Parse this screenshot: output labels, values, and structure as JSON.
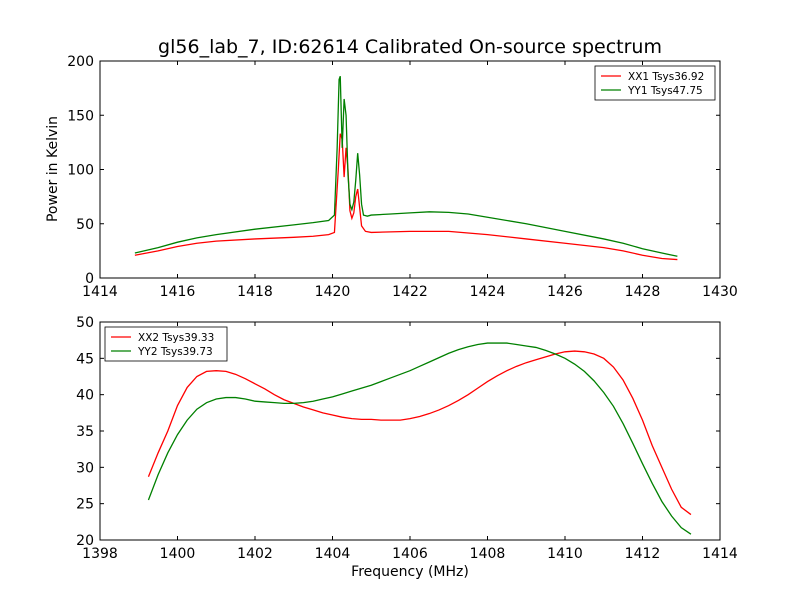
{
  "figure": {
    "title": "gl56_lab_7, ID:62614 Calibrated On-source spectrum",
    "ylabel": "Power in Kelvin",
    "xlabel": "Frequency (MHz)"
  },
  "colors": {
    "red": "#ff0000",
    "green": "#008000"
  },
  "chart_data": [
    {
      "type": "line",
      "xlim": [
        1414,
        1430
      ],
      "ylim": [
        0,
        200
      ],
      "xticks": [
        1414,
        1416,
        1418,
        1420,
        1422,
        1424,
        1426,
        1428,
        1430
      ],
      "yticks": [
        0,
        50,
        100,
        150,
        200
      ],
      "legend_position": "top-right",
      "grid": false,
      "series": [
        {
          "name": "XX1 Tsys36.92",
          "color": "#ff0000",
          "x": [
            1414.9,
            1415.5,
            1416,
            1416.5,
            1417,
            1418,
            1419,
            1419.5,
            1419.9,
            1420.05,
            1420.15,
            1420.2,
            1420.25,
            1420.3,
            1420.35,
            1420.4,
            1420.45,
            1420.5,
            1420.55,
            1420.6,
            1420.65,
            1420.7,
            1420.75,
            1420.85,
            1421,
            1421.5,
            1422,
            1423,
            1424,
            1425,
            1426,
            1427,
            1427.5,
            1428,
            1428.5,
            1428.9
          ],
          "y": [
            21,
            25,
            29,
            32,
            34,
            36,
            37.5,
            38.5,
            40,
            42,
            100,
            133,
            128,
            93,
            120,
            100,
            62,
            55,
            60,
            75,
            82,
            65,
            48,
            43,
            42,
            42.5,
            43,
            43,
            40,
            36,
            32,
            28,
            25,
            21,
            18,
            17
          ]
        },
        {
          "name": "YY1 Tsys47.75",
          "color": "#008000",
          "x": [
            1414.9,
            1415.5,
            1416,
            1416.5,
            1417,
            1418,
            1419,
            1419.5,
            1419.9,
            1420.05,
            1420.12,
            1420.17,
            1420.2,
            1420.25,
            1420.3,
            1420.35,
            1420.4,
            1420.45,
            1420.5,
            1420.55,
            1420.6,
            1420.65,
            1420.7,
            1420.75,
            1420.8,
            1420.9,
            1421,
            1421.5,
            1422,
            1422.5,
            1423,
            1423.5,
            1424,
            1425,
            1426,
            1427,
            1427.5,
            1428,
            1428.5,
            1428.9
          ],
          "y": [
            23,
            28,
            33,
            37,
            40,
            45,
            49,
            51,
            53,
            58,
            120,
            183,
            186,
            120,
            165,
            150,
            95,
            68,
            63,
            70,
            90,
            115,
            95,
            68,
            58,
            57,
            58,
            59,
            60,
            61,
            60.5,
            59,
            56,
            50,
            43,
            36,
            32,
            27,
            23,
            20
          ]
        }
      ]
    },
    {
      "type": "line",
      "xlim": [
        1398,
        1414
      ],
      "ylim": [
        20,
        50
      ],
      "xticks": [
        1398,
        1400,
        1402,
        1404,
        1406,
        1408,
        1410,
        1412,
        1414
      ],
      "yticks": [
        20,
        25,
        30,
        35,
        40,
        45,
        50
      ],
      "legend_position": "top-left",
      "grid": false,
      "series": [
        {
          "name": "XX2 Tsys39.33",
          "color": "#ff0000",
          "x": [
            1399.25,
            1399.5,
            1399.75,
            1400,
            1400.25,
            1400.5,
            1400.75,
            1401,
            1401.25,
            1401.5,
            1401.75,
            1402,
            1402.25,
            1402.5,
            1402.75,
            1403,
            1403.25,
            1403.5,
            1403.75,
            1404,
            1404.25,
            1404.5,
            1404.75,
            1405,
            1405.25,
            1405.5,
            1405.75,
            1406,
            1406.25,
            1406.5,
            1406.75,
            1407,
            1407.25,
            1407.5,
            1407.75,
            1408,
            1408.25,
            1408.5,
            1408.75,
            1409,
            1409.25,
            1409.5,
            1409.75,
            1410,
            1410.25,
            1410.5,
            1410.75,
            1411,
            1411.25,
            1411.5,
            1411.75,
            1412,
            1412.25,
            1412.5,
            1412.75,
            1413,
            1413.25
          ],
          "y": [
            28.7,
            32,
            35,
            38.5,
            41,
            42.5,
            43.2,
            43.3,
            43.2,
            42.8,
            42.2,
            41.5,
            40.8,
            40.0,
            39.3,
            38.8,
            38.3,
            37.9,
            37.5,
            37.2,
            36.9,
            36.7,
            36.6,
            36.6,
            36.5,
            36.5,
            36.5,
            36.7,
            37.0,
            37.4,
            37.9,
            38.5,
            39.2,
            40.0,
            40.9,
            41.8,
            42.6,
            43.3,
            43.9,
            44.4,
            44.8,
            45.2,
            45.6,
            45.9,
            46.0,
            45.9,
            45.6,
            45.0,
            43.8,
            42.0,
            39.5,
            36.5,
            33.0,
            30.0,
            27.0,
            24.5,
            23.5
          ]
        },
        {
          "name": "YY2 Tsys39.73",
          "color": "#008000",
          "x": [
            1399.25,
            1399.5,
            1399.75,
            1400,
            1400.25,
            1400.5,
            1400.75,
            1401,
            1401.25,
            1401.5,
            1401.75,
            1402,
            1402.25,
            1402.5,
            1402.75,
            1403,
            1403.25,
            1403.5,
            1403.75,
            1404,
            1404.25,
            1404.5,
            1404.75,
            1405,
            1405.25,
            1405.5,
            1405.75,
            1406,
            1406.25,
            1406.5,
            1406.75,
            1407,
            1407.25,
            1407.5,
            1407.75,
            1408,
            1408.25,
            1408.5,
            1408.75,
            1409,
            1409.25,
            1409.5,
            1409.75,
            1410,
            1410.25,
            1410.5,
            1410.75,
            1411,
            1411.25,
            1411.5,
            1411.75,
            1412,
            1412.25,
            1412.5,
            1412.75,
            1413,
            1413.25
          ],
          "y": [
            25.5,
            29,
            32,
            34.5,
            36.5,
            38,
            38.9,
            39.4,
            39.6,
            39.6,
            39.4,
            39.1,
            39.0,
            38.9,
            38.8,
            38.8,
            38.9,
            39.1,
            39.4,
            39.7,
            40.1,
            40.5,
            40.9,
            41.3,
            41.8,
            42.3,
            42.8,
            43.3,
            43.9,
            44.5,
            45.1,
            45.7,
            46.2,
            46.6,
            46.9,
            47.1,
            47.1,
            47.1,
            46.9,
            46.7,
            46.5,
            46.1,
            45.6,
            45.0,
            44.2,
            43.2,
            41.9,
            40.3,
            38.4,
            36.0,
            33.3,
            30.5,
            27.8,
            25.3,
            23.3,
            21.7,
            20.8
          ]
        }
      ]
    }
  ]
}
